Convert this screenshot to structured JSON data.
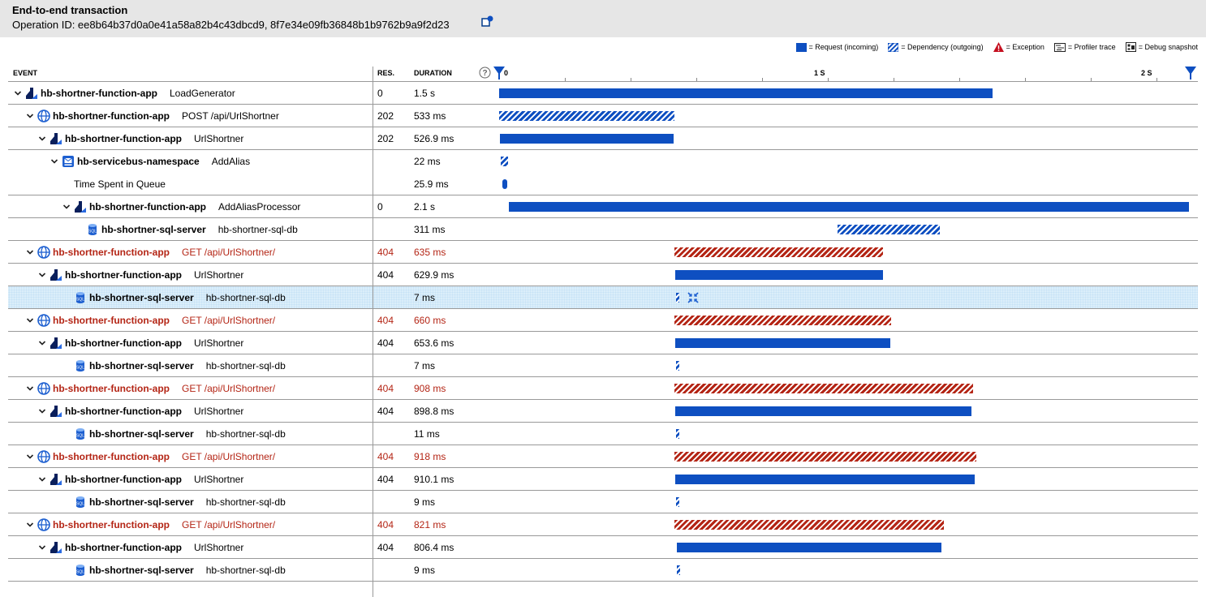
{
  "header": {
    "title": "End-to-end transaction",
    "operation_label": "Operation ID: ee8b64b37d0a0e41a58a82b4c43dbcd9, 8f7e34e09fb36848b1b9762b9a9f2d23"
  },
  "legend": {
    "request": "= Request (incoming)",
    "dependency": "= Dependency (outgoing)",
    "exception": "= Exception",
    "profiler": "= Profiler trace",
    "snapshot": "= Debug snapshot"
  },
  "columns": {
    "event": "EVENT",
    "res": "RES.",
    "duration": "DURATION"
  },
  "axis": {
    "t0": "0",
    "t1": "1 S",
    "t2": "2 S",
    "max_seconds": 2.1
  },
  "colors": {
    "request": "#0e4fc1",
    "exception": "#b42515",
    "selected_row": "#dbeefa",
    "header_bg": "#e6e6e6"
  },
  "rows": [
    {
      "chevron": true,
      "icon": "function-app-icon",
      "name": "hb-shortner-function-app",
      "op": "LoadGenerator",
      "res": "0",
      "duration": "1.5 s",
      "start": 0,
      "length": 1.5,
      "kind": "req",
      "error": false
    },
    {
      "chevron": true,
      "icon": "web-request-icon",
      "name": "hb-shortner-function-app",
      "op": "POST /api/UrlShortner",
      "res": "202",
      "duration": "533 ms",
      "start": 0,
      "length": 0.533,
      "kind": "dep",
      "error": false
    },
    {
      "chevron": true,
      "icon": "function-app-icon",
      "name": "hb-shortner-function-app",
      "op": "UrlShortner",
      "res": "202",
      "duration": "526.9 ms",
      "start": 0.003,
      "length": 0.527,
      "kind": "req",
      "error": false
    },
    {
      "chevron": true,
      "icon": "service-bus-icon",
      "name": "hb-servicebus-namespace",
      "op": "AddAlias",
      "res": "",
      "duration": "22 ms",
      "start": 0.005,
      "length": 0.022,
      "kind": "dep",
      "error": false,
      "noline": true
    },
    {
      "chevron": false,
      "icon": "",
      "name": "",
      "op": "Time Spent in Queue",
      "res": "",
      "duration": "25.9 ms",
      "start": 0.01,
      "length": 0.026,
      "kind": "req",
      "error": false
    },
    {
      "chevron": true,
      "icon": "function-app-icon",
      "name": "hb-shortner-function-app",
      "op": "AddAliasProcessor",
      "res": "0",
      "duration": "2.1 s",
      "start": 0.03,
      "length": 2.07,
      "kind": "req",
      "error": false
    },
    {
      "chevron": false,
      "icon": "sql-database-icon",
      "name": "hb-shortner-sql-server",
      "op": "hb-shortner-sql-db",
      "res": "",
      "duration": "311 ms",
      "start": 1.03,
      "length": 0.311,
      "kind": "dep",
      "error": false
    },
    {
      "chevron": true,
      "icon": "web-request-icon",
      "name": "hb-shortner-function-app",
      "op": "GET /api/UrlShortner/",
      "res": "404",
      "duration": "635 ms",
      "start": 0.533,
      "length": 0.635,
      "kind": "exc",
      "error": true
    },
    {
      "chevron": true,
      "icon": "function-app-icon",
      "name": "hb-shortner-function-app",
      "op": "UrlShortner",
      "res": "404",
      "duration": "629.9 ms",
      "start": 0.537,
      "length": 0.63,
      "kind": "req",
      "error": false
    },
    {
      "chevron": false,
      "icon": "sql-database-icon",
      "name": "hb-shortner-sql-server",
      "op": "hb-shortner-sql-db",
      "res": "",
      "duration": "7 ms",
      "start": 0.538,
      "length": 0.007,
      "kind": "dep",
      "error": false,
      "selected": true,
      "expand": true
    },
    {
      "chevron": true,
      "icon": "web-request-icon",
      "name": "hb-shortner-function-app",
      "op": "GET /api/UrlShortner/",
      "res": "404",
      "duration": "660 ms",
      "start": 0.533,
      "length": 0.66,
      "kind": "exc",
      "error": true
    },
    {
      "chevron": true,
      "icon": "function-app-icon",
      "name": "hb-shortner-function-app",
      "op": "UrlShortner",
      "res": "404",
      "duration": "653.6 ms",
      "start": 0.537,
      "length": 0.654,
      "kind": "req",
      "error": false
    },
    {
      "chevron": false,
      "icon": "sql-database-icon",
      "name": "hb-shortner-sql-server",
      "op": "hb-shortner-sql-db",
      "res": "",
      "duration": "7 ms",
      "start": 0.538,
      "length": 0.007,
      "kind": "dep",
      "error": false
    },
    {
      "chevron": true,
      "icon": "web-request-icon",
      "name": "hb-shortner-function-app",
      "op": "GET /api/UrlShortner/",
      "res": "404",
      "duration": "908 ms",
      "start": 0.533,
      "length": 0.908,
      "kind": "exc",
      "error": true
    },
    {
      "chevron": true,
      "icon": "function-app-icon",
      "name": "hb-shortner-function-app",
      "op": "UrlShortner",
      "res": "404",
      "duration": "898.8 ms",
      "start": 0.537,
      "length": 0.899,
      "kind": "req",
      "error": false
    },
    {
      "chevron": false,
      "icon": "sql-database-icon",
      "name": "hb-shortner-sql-server",
      "op": "hb-shortner-sql-db",
      "res": "",
      "duration": "11 ms",
      "start": 0.538,
      "length": 0.011,
      "kind": "dep",
      "error": false
    },
    {
      "chevron": true,
      "icon": "web-request-icon",
      "name": "hb-shortner-function-app",
      "op": "GET /api/UrlShortner/",
      "res": "404",
      "duration": "918 ms",
      "start": 0.533,
      "length": 0.918,
      "kind": "exc",
      "error": true
    },
    {
      "chevron": true,
      "icon": "function-app-icon",
      "name": "hb-shortner-function-app",
      "op": "UrlShortner",
      "res": "404",
      "duration": "910.1 ms",
      "start": 0.537,
      "length": 0.91,
      "kind": "req",
      "error": false
    },
    {
      "chevron": false,
      "icon": "sql-database-icon",
      "name": "hb-shortner-sql-server",
      "op": "hb-shortner-sql-db",
      "res": "",
      "duration": "9 ms",
      "start": 0.538,
      "length": 0.009,
      "kind": "dep",
      "error": false
    },
    {
      "chevron": true,
      "icon": "web-request-icon",
      "name": "hb-shortner-function-app",
      "op": "GET /api/UrlShortner/",
      "res": "404",
      "duration": "821 ms",
      "start": 0.533,
      "length": 0.821,
      "kind": "exc",
      "error": true
    },
    {
      "chevron": true,
      "icon": "function-app-icon",
      "name": "hb-shortner-function-app",
      "op": "UrlShortner",
      "res": "404",
      "duration": "806.4 ms",
      "start": 0.54,
      "length": 0.806,
      "kind": "req",
      "error": false
    },
    {
      "chevron": false,
      "icon": "sql-database-icon",
      "name": "hb-shortner-sql-server",
      "op": "hb-shortner-sql-db",
      "res": "",
      "duration": "9 ms",
      "start": 0.54,
      "length": 0.009,
      "kind": "dep",
      "error": false
    }
  ]
}
